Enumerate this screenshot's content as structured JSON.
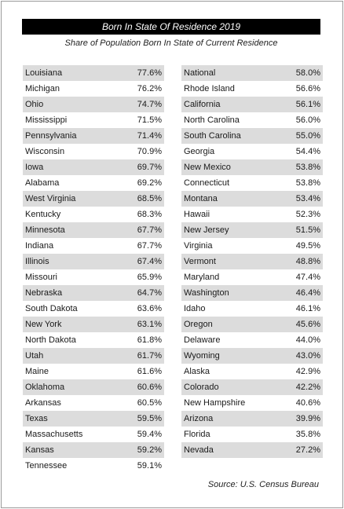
{
  "title": "Born In State Of Residence 2019",
  "subtitle": "Share of Population Born In State of Current Residence",
  "source": "Source: U.S. Census Bureau",
  "left_rows": [
    {
      "state": "Louisiana",
      "value": "77.6%"
    },
    {
      "state": "Michigan",
      "value": "76.2%"
    },
    {
      "state": "Ohio",
      "value": "74.7%"
    },
    {
      "state": "Mississippi",
      "value": "71.5%"
    },
    {
      "state": "Pennsylvania",
      "value": "71.4%"
    },
    {
      "state": "Wisconsin",
      "value": "70.9%"
    },
    {
      "state": "Iowa",
      "value": "69.7%"
    },
    {
      "state": "Alabama",
      "value": "69.2%"
    },
    {
      "state": "West Virginia",
      "value": "68.5%"
    },
    {
      "state": "Kentucky",
      "value": "68.3%"
    },
    {
      "state": "Minnesota",
      "value": "67.7%"
    },
    {
      "state": "Indiana",
      "value": "67.7%"
    },
    {
      "state": "Illinois",
      "value": "67.4%"
    },
    {
      "state": "Missouri",
      "value": "65.9%"
    },
    {
      "state": "Nebraska",
      "value": "64.7%"
    },
    {
      "state": "South Dakota",
      "value": "63.6%"
    },
    {
      "state": "New York",
      "value": "63.1%"
    },
    {
      "state": "North Dakota",
      "value": "61.8%"
    },
    {
      "state": "Utah",
      "value": "61.7%"
    },
    {
      "state": "Maine",
      "value": "61.6%"
    },
    {
      "state": "Oklahoma",
      "value": "60.6%"
    },
    {
      "state": "Arkansas",
      "value": "60.5%"
    },
    {
      "state": "Texas",
      "value": "59.5%"
    },
    {
      "state": "Massachusetts",
      "value": "59.4%"
    },
    {
      "state": "Kansas",
      "value": "59.2%"
    },
    {
      "state": "Tennessee",
      "value": "59.1%"
    }
  ],
  "right_rows": [
    {
      "state": "National",
      "value": "58.0%"
    },
    {
      "state": "Rhode Island",
      "value": "56.6%"
    },
    {
      "state": "California",
      "value": "56.1%"
    },
    {
      "state": "North Carolina",
      "value": "56.0%"
    },
    {
      "state": "South Carolina",
      "value": "55.0%"
    },
    {
      "state": "Georgia",
      "value": "54.4%"
    },
    {
      "state": "New Mexico",
      "value": "53.8%"
    },
    {
      "state": "Connecticut",
      "value": "53.8%"
    },
    {
      "state": "Montana",
      "value": "53.4%"
    },
    {
      "state": "Hawaii",
      "value": "52.3%"
    },
    {
      "state": "New Jersey",
      "value": "51.5%"
    },
    {
      "state": "Virginia",
      "value": "49.5%"
    },
    {
      "state": "Vermont",
      "value": "48.8%"
    },
    {
      "state": "Maryland",
      "value": "47.4%"
    },
    {
      "state": "Washington",
      "value": "46.4%"
    },
    {
      "state": "Idaho",
      "value": "46.1%"
    },
    {
      "state": "Oregon",
      "value": "45.6%"
    },
    {
      "state": "Delaware",
      "value": "44.0%"
    },
    {
      "state": "Wyoming",
      "value": "43.0%"
    },
    {
      "state": "Alaska",
      "value": "42.9%"
    },
    {
      "state": "Colorado",
      "value": "42.2%"
    },
    {
      "state": "New Hampshire",
      "value": "40.6%"
    },
    {
      "state": "Arizona",
      "value": "39.9%"
    },
    {
      "state": "Florida",
      "value": "35.8%"
    },
    {
      "state": "Nevada",
      "value": "27.2%"
    }
  ]
}
